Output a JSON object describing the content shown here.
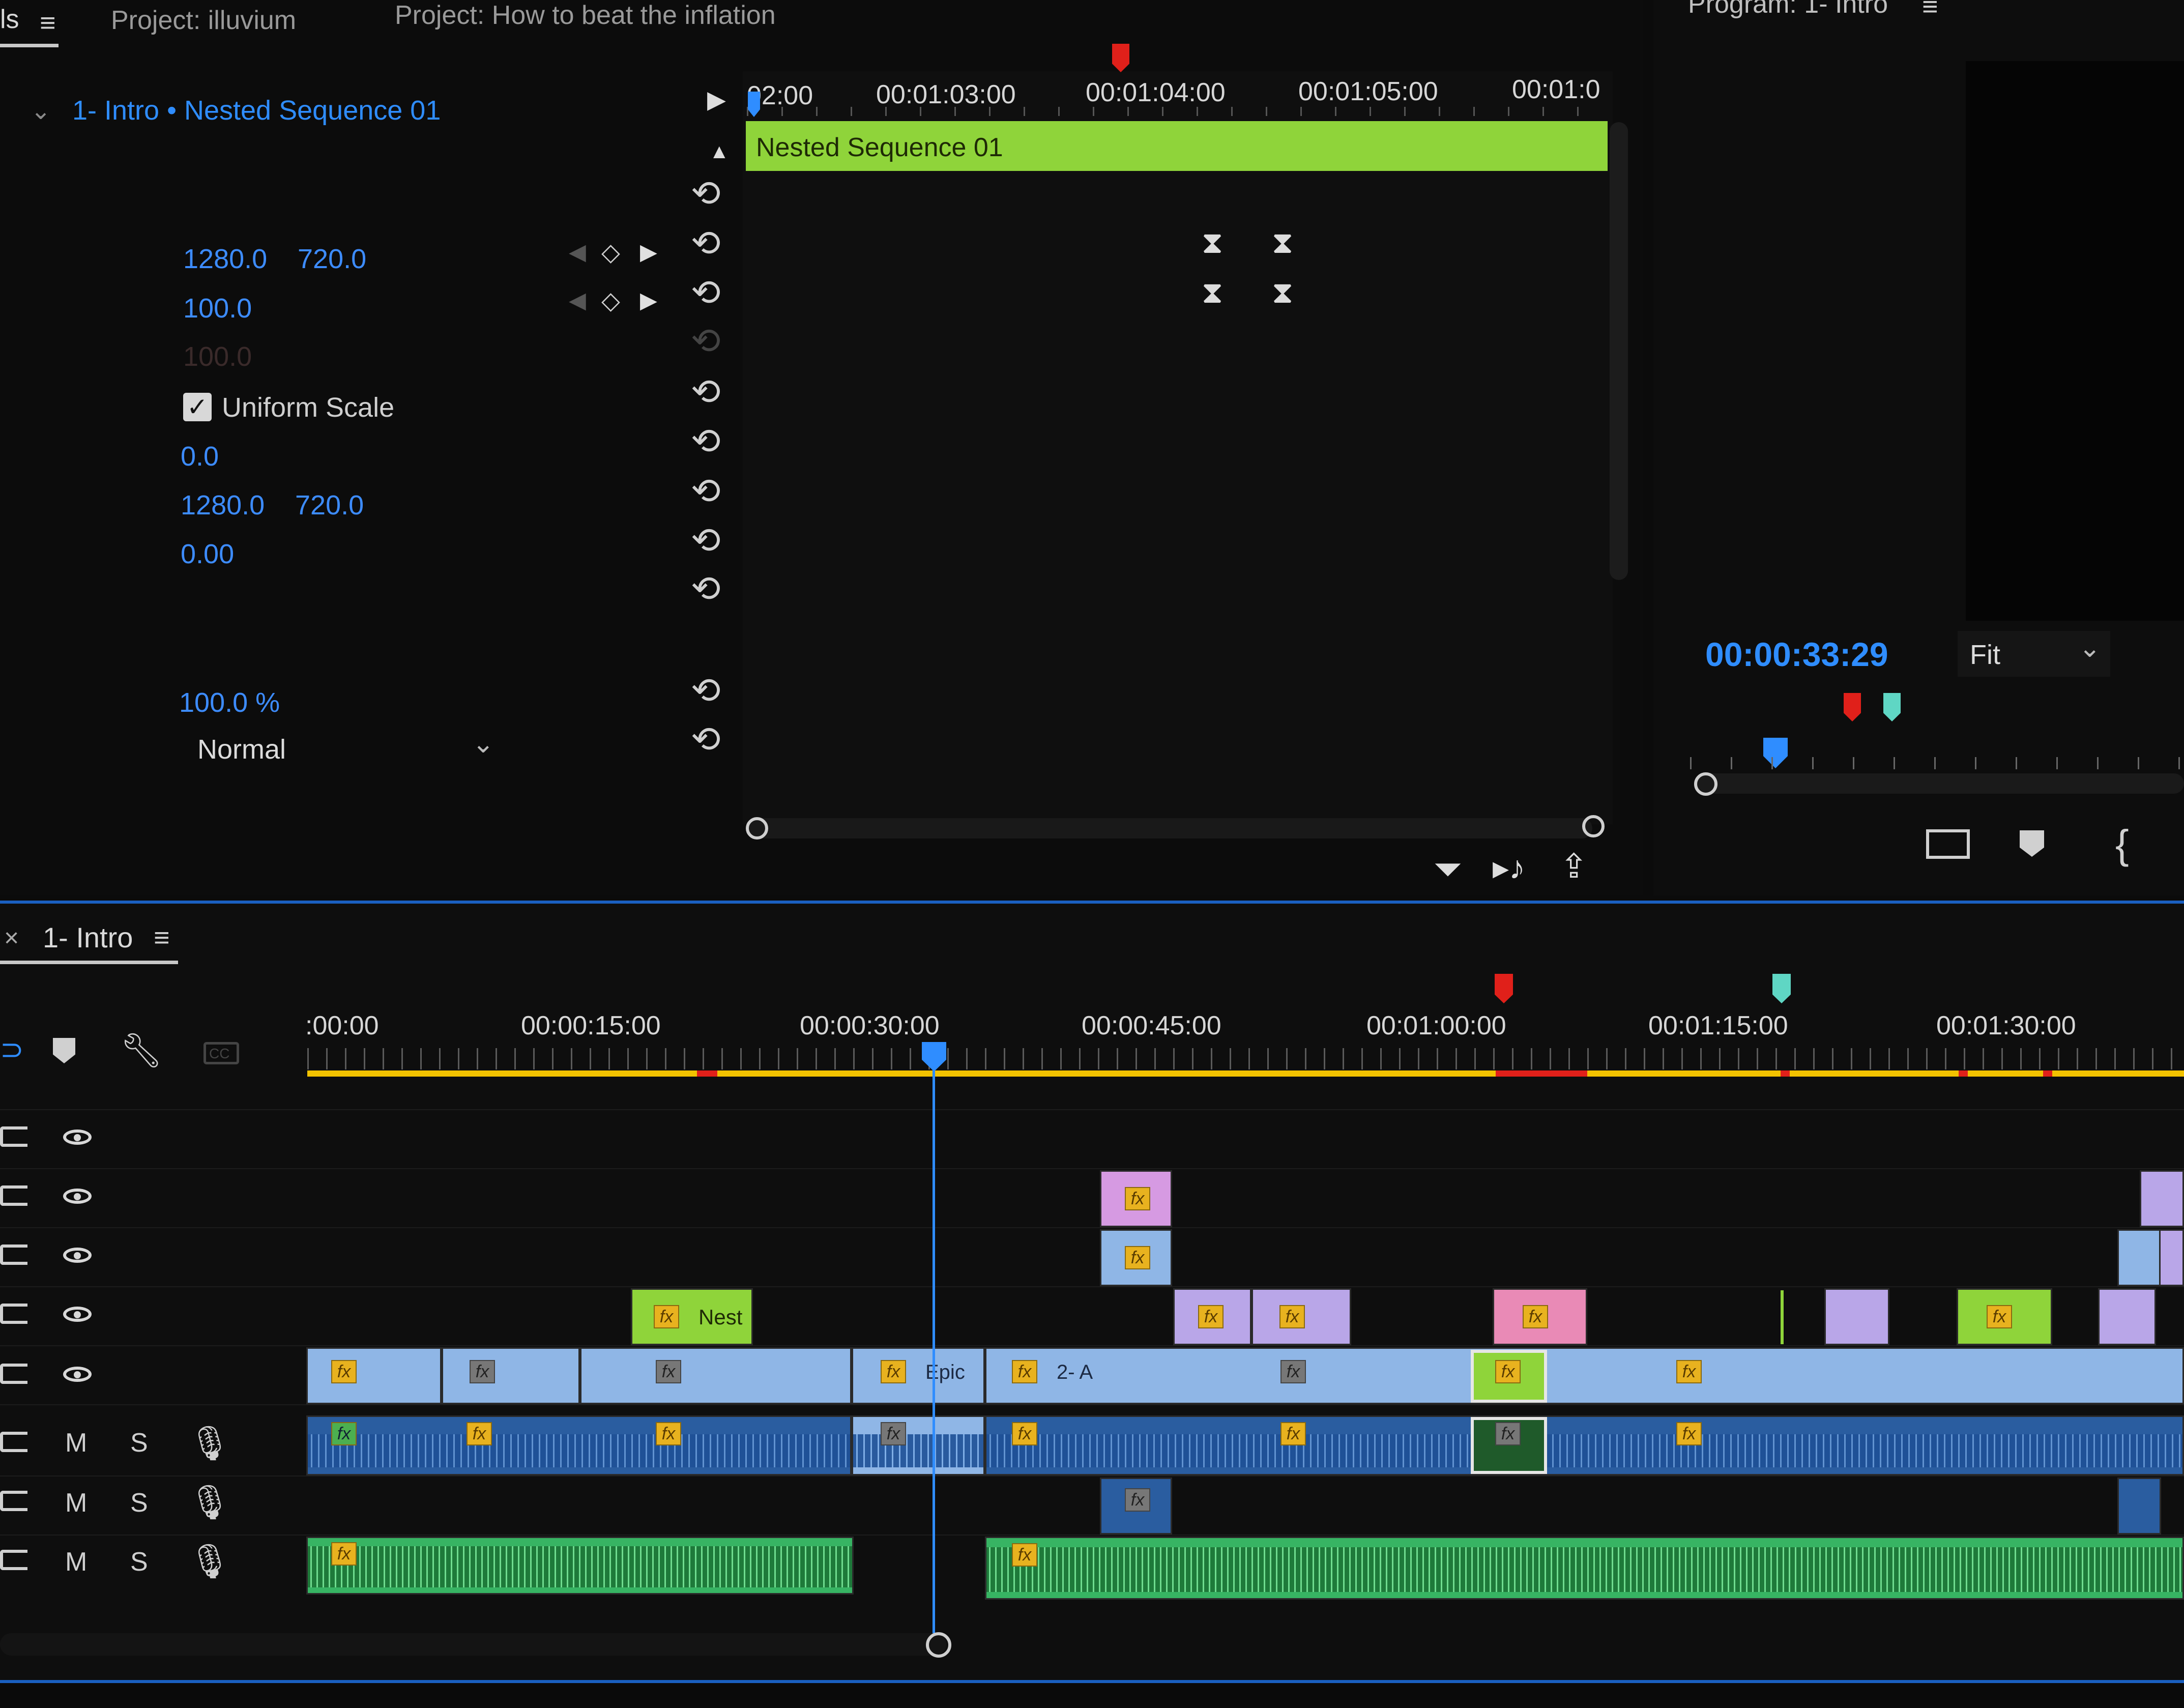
{
  "tabs": {
    "effects_tab": "ls",
    "project_illuvium": "Project: illuvium",
    "project_inflation": "Project: How to beat the inflation",
    "program": "Program: 1- Intro"
  },
  "effect_controls": {
    "breadcrumb": "1- Intro • Nested Sequence 01",
    "position_x": "1280.0",
    "position_y": "720.0",
    "scale": "100.0",
    "scale_width": "100.0",
    "uniform_scale": "Uniform Scale",
    "rotation": "0.0",
    "anchor_x": "1280.0",
    "anchor_y": "720.0",
    "antiflicker": "0.00",
    "opacity": "100.0 %",
    "blend_mode": "Normal"
  },
  "mini_timeline": {
    "ticks": [
      "02:00",
      "00:01:03:00",
      "00:01:04:00",
      "00:01:05:00",
      "00:01:0"
    ],
    "clip_name": "Nested Sequence 01"
  },
  "program_monitor": {
    "timecode": "00:00:33:29",
    "zoom": "Fit"
  },
  "timeline": {
    "tab_label": "1- Intro",
    "close": "×",
    "ruler": [
      ":00:00",
      "00:00:15:00",
      "00:00:30:00",
      "00:00:45:00",
      "00:01:00:00",
      "00:01:15:00",
      "00:01:30:00"
    ],
    "clip_nest": "Nest",
    "clip_epic": "Epic",
    "clip_2a": "2- A",
    "fx": "fx",
    "mute": "M",
    "solo": "S",
    "cc": "CC"
  },
  "colors": {
    "accent_blue": "#2f8dff",
    "nested_clip": "#8fd43a",
    "video_clip": "#8fb6e6",
    "pink_clip": "#e98ab6",
    "purple_clip": "#b9a6e8",
    "audio_green": "#37b463",
    "marker_red": "#e0201a",
    "marker_teal": "#5fd6c4",
    "render_bar": "#f2c200"
  }
}
